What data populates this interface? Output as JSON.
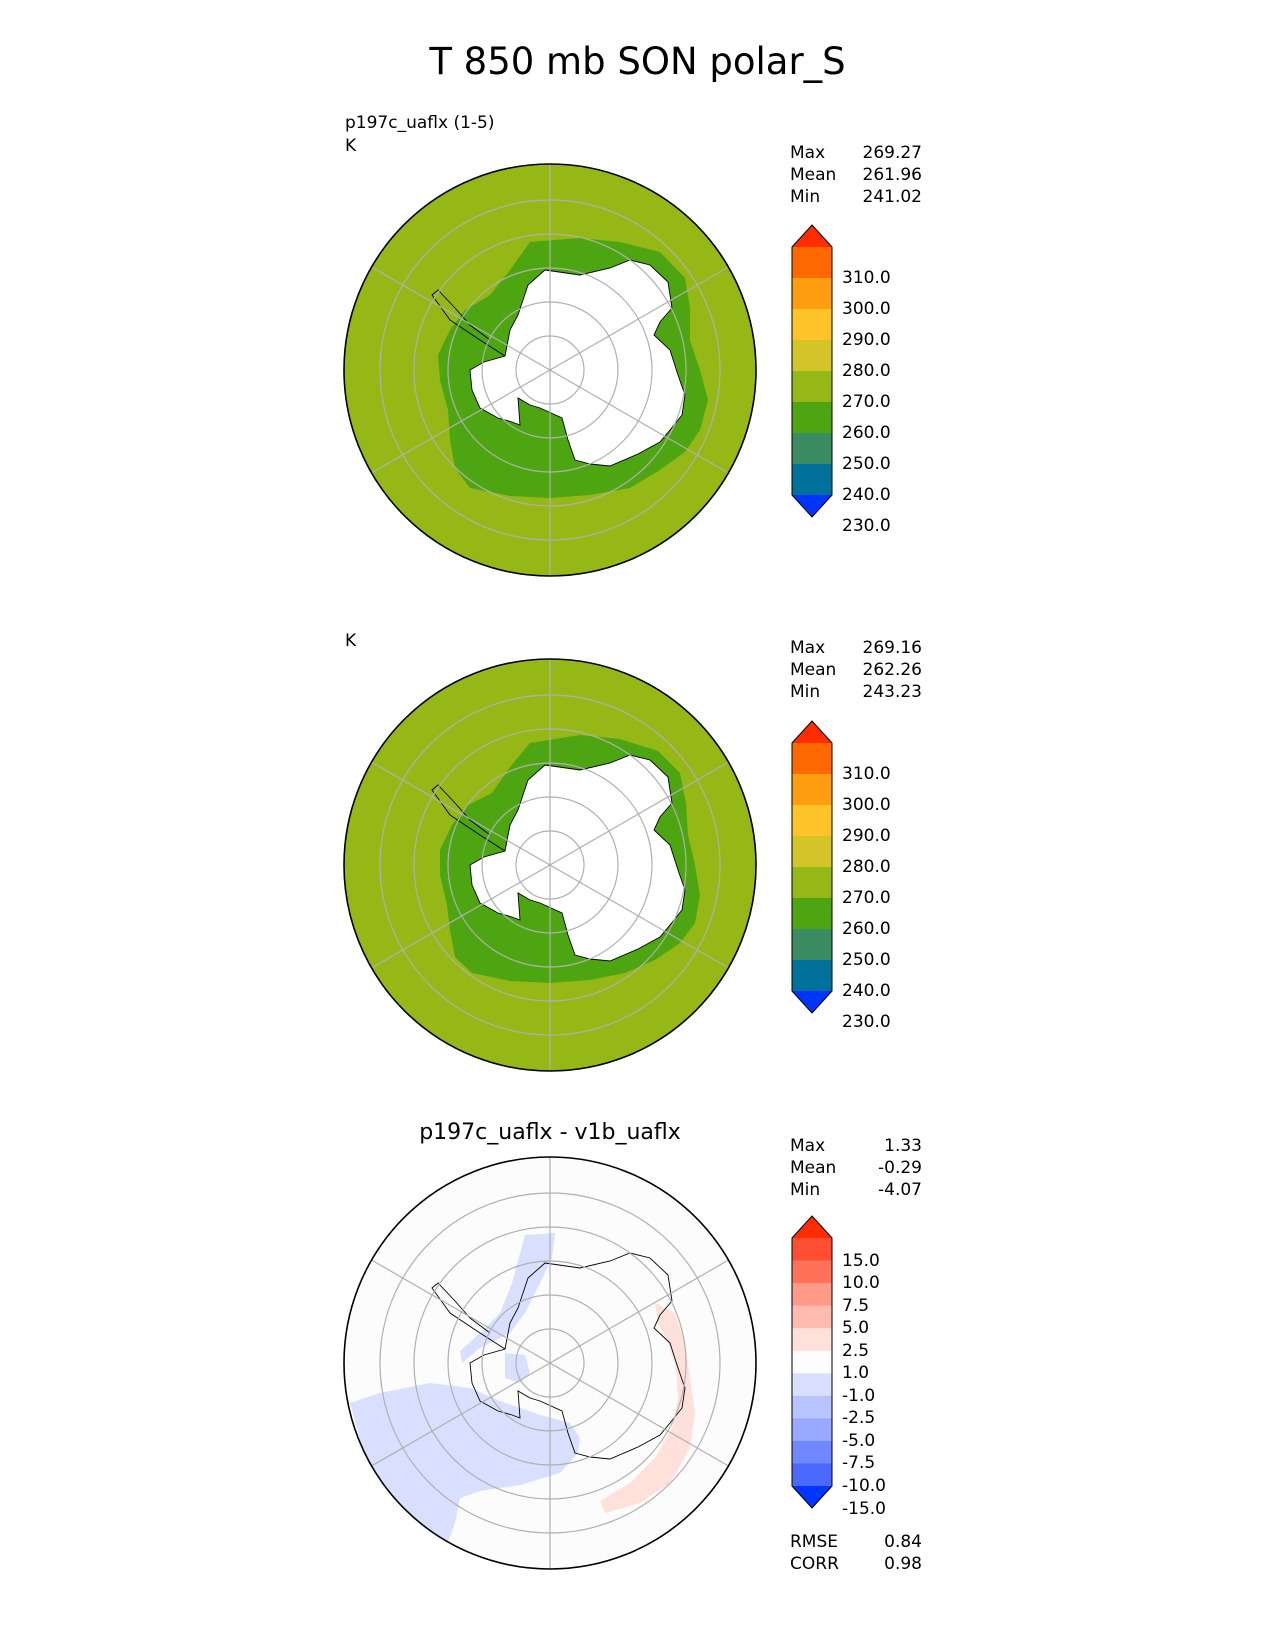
{
  "title": "T 850 mb SON polar_S",
  "panels": [
    {
      "id": "test",
      "title": "",
      "case_label": "p197c_uaflx (1-5)",
      "units": "K",
      "stats": [
        {
          "label": "Max",
          "value": "269.27"
        },
        {
          "label": "Mean",
          "value": "261.96"
        },
        {
          "label": "Min",
          "value": "241.02"
        }
      ],
      "colorbar": {
        "labels": [
          "310.0",
          "300.0",
          "290.0",
          "280.0",
          "270.0",
          "260.0",
          "250.0",
          "240.0",
          "230.0"
        ],
        "colors": [
          "#ff2c00",
          "#ff6800",
          "#ff9d10",
          "#ffc32a",
          "#d4c428",
          "#96b817",
          "#4da611",
          "#3a8a62",
          "#00719b",
          "#0035ff"
        ]
      },
      "field_colors": {
        "outer": "#96b817",
        "band": "#4da611",
        "accent": "#3a8a62",
        "land": "#ffffff"
      }
    },
    {
      "id": "reference",
      "title": "",
      "case_label": "",
      "units": "K",
      "stats": [
        {
          "label": "Max",
          "value": "269.16"
        },
        {
          "label": "Mean",
          "value": "262.26"
        },
        {
          "label": "Min",
          "value": "243.23"
        }
      ],
      "colorbar": {
        "labels": [
          "310.0",
          "300.0",
          "290.0",
          "280.0",
          "270.0",
          "260.0",
          "250.0",
          "240.0",
          "230.0"
        ],
        "colors": [
          "#ff2c00",
          "#ff6800",
          "#ff9d10",
          "#ffc32a",
          "#d4c428",
          "#96b817",
          "#4da611",
          "#3a8a62",
          "#00719b",
          "#0035ff"
        ]
      },
      "field_colors": {
        "outer": "#96b817",
        "band": "#4da611",
        "accent": "#3a8a62",
        "land": "#ffffff"
      }
    },
    {
      "id": "difference",
      "title": "p197c_uaflx - v1b_uaflx",
      "case_label": "",
      "units": "",
      "stats": [
        {
          "label": "Max",
          "value": "1.33"
        },
        {
          "label": "Mean",
          "value": "-0.29"
        },
        {
          "label": "Min",
          "value": "-4.07"
        }
      ],
      "colorbar": {
        "labels": [
          "15.0",
          "10.0",
          "7.5",
          "5.0",
          "2.5",
          "1.0",
          "-1.0",
          "-2.5",
          "-5.0",
          "-7.5",
          "-10.0",
          "-15.0"
        ],
        "colors": [
          "#ff2e00",
          "#ff4f32",
          "#ff7259",
          "#ff9a89",
          "#ffbbb0",
          "#ffe0db",
          "#fdfdfd",
          "#d9e0ff",
          "#b7c4ff",
          "#98a9ff",
          "#6f88ff",
          "#4c69ff",
          "#0036ff"
        ]
      },
      "field_colors": {
        "negative": "#d9e0ff",
        "positive": "#ffe0db",
        "background": "#fcfcfc"
      },
      "metrics": [
        {
          "label": "RMSE",
          "value": "0.84"
        },
        {
          "label": "CORR",
          "value": "0.98"
        }
      ]
    }
  ]
}
